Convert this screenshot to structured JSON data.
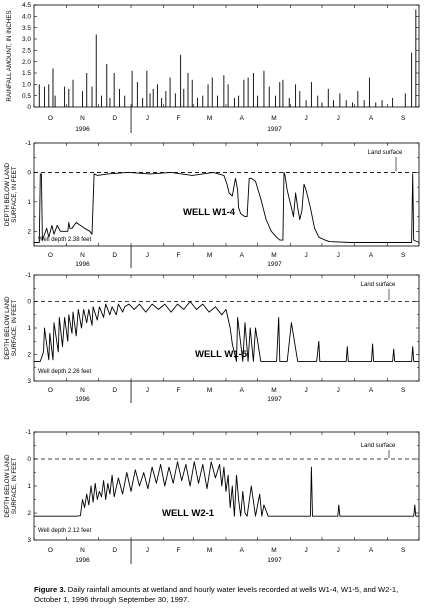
{
  "caption": {
    "label": "Figure 3.",
    "text": "Daily rainfall amounts at wetland and hourly water levels recorded at wells W1-4, W1-5, and W2-1, October 1, 1996 through September 30, 1997."
  },
  "months": [
    "O",
    "N",
    "D",
    "J",
    "F",
    "M",
    "A",
    "M",
    "J",
    "J",
    "A",
    "S"
  ],
  "years": [
    "1996",
    "1997"
  ],
  "chart_data": [
    {
      "type": "bar",
      "title": "",
      "ylabel": "RAINFALL AMOUNT, IN INCHES",
      "ylim": [
        0,
        4.5
      ],
      "yticks": [
        "0",
        "0.5",
        "1.0",
        "1.5",
        "2.0",
        "2.5",
        "3.0",
        "3.5",
        "4.0",
        "4.5"
      ],
      "x_unit": "days since Oct 1, 1996",
      "x": [
        5,
        10,
        14,
        18,
        20,
        29,
        33,
        37,
        46,
        50,
        55,
        59,
        64,
        69,
        72,
        76,
        81,
        86,
        93,
        98,
        103,
        107,
        110,
        113,
        117,
        121,
        125,
        129,
        134,
        139,
        142,
        146,
        150,
        155,
        160,
        165,
        169,
        174,
        180,
        184,
        190,
        194,
        199,
        203,
        208,
        212,
        218,
        223,
        229,
        233,
        236,
        242,
        248,
        252,
        258,
        263,
        269,
        273,
        279,
        284,
        290,
        296,
        302,
        307,
        313,
        318,
        324,
        330,
        340,
        352,
        358,
        362
      ],
      "values": [
        1.0,
        0.9,
        1.0,
        1.7,
        0.5,
        0.9,
        0.8,
        1.2,
        0.7,
        1.5,
        0.9,
        3.2,
        0.5,
        1.9,
        0.4,
        1.5,
        0.8,
        0.5,
        1.6,
        1.1,
        0.4,
        1.6,
        0.6,
        0.8,
        1.0,
        0.4,
        0.7,
        1.3,
        0.6,
        2.3,
        0.8,
        1.5,
        1.2,
        0.4,
        0.5,
        1.0,
        1.3,
        0.5,
        1.4,
        1.0,
        0.4,
        0.5,
        1.2,
        1.3,
        1.5,
        0.5,
        1.6,
        0.9,
        0.5,
        1.1,
        1.2,
        0.4,
        1.0,
        0.7,
        0.3,
        1.1,
        0.5,
        0.2,
        0.8,
        0.3,
        0.6,
        0.3,
        0.2,
        0.7,
        0.3,
        1.3,
        0.2,
        0.3,
        0.4,
        0.6,
        2.4,
        4.3
      ]
    },
    {
      "type": "line",
      "title": "WELL W1-4",
      "ylabel": "DEPTH BELOW LAND SURFACE, IN FEET",
      "ylim": [
        -1,
        2.5
      ],
      "yticks": [
        "-1",
        "0",
        "1",
        "2"
      ],
      "reference_line": "Land surface",
      "note": "Well depth 2.38 feet",
      "series": [
        {
          "x": [
            0,
            5,
            6,
            7,
            8,
            12,
            14,
            17,
            19,
            22,
            25,
            28,
            32,
            33,
            34,
            36,
            40,
            44,
            48,
            53,
            55,
            57,
            60,
            70,
            90,
            110,
            130,
            150,
            160,
            170,
            180,
            183,
            185,
            188,
            190,
            191,
            193,
            194,
            196,
            200,
            202,
            204,
            206,
            210,
            215,
            220,
            225,
            230,
            233,
            236,
            237,
            238,
            240,
            244,
            246,
            248,
            250,
            252,
            254,
            256,
            258,
            262,
            266,
            270,
            276,
            280,
            300,
            330,
            358,
            359,
            360,
            365
          ],
          "y": [
            2.38,
            2.38,
            0.05,
            0.05,
            2.3,
            1.9,
            2.2,
            1.8,
            2.1,
            1.8,
            2.0,
            2.0,
            2.0,
            1.7,
            1.9,
            1.9,
            1.7,
            1.8,
            1.9,
            2.0,
            2.1,
            0.05,
            0.1,
            0.05,
            0.0,
            0.05,
            0.0,
            0.1,
            0.05,
            0.0,
            0.1,
            0.4,
            0.7,
            0.8,
            0.4,
            0.2,
            0.6,
            1.2,
            1.4,
            1.5,
            1.5,
            0.2,
            0.2,
            0.3,
            0.9,
            1.6,
            2.0,
            2.2,
            2.3,
            2.3,
            0.0,
            0.1,
            0.6,
            1.2,
            1.5,
            0.7,
            1.2,
            1.6,
            1.3,
            0.4,
            0.6,
            1.2,
            1.9,
            2.2,
            2.3,
            2.35,
            2.38,
            2.38,
            2.38,
            0.05,
            2.3,
            2.38
          ]
        }
      ]
    },
    {
      "type": "line",
      "title": "WELL W1-5",
      "ylabel": "DEPTH BELOW LAND SURFACE, IN FEET",
      "ylim": [
        -1,
        3
      ],
      "yticks": [
        "-1",
        "0",
        "1",
        "2",
        "3"
      ],
      "reference_line": "Land surface",
      "note": "Well depth 2.26 feet",
      "series": [
        {
          "x": [
            0,
            5,
            6,
            9,
            10,
            14,
            15,
            18,
            19,
            23,
            24,
            27,
            29,
            32,
            33,
            36,
            37,
            40,
            42,
            45,
            47,
            50,
            52,
            55,
            56,
            60,
            62,
            66,
            68,
            72,
            74,
            78,
            80,
            84,
            86,
            90,
            95,
            100,
            106,
            112,
            118,
            124,
            130,
            136,
            142,
            148,
            154,
            160,
            166,
            172,
            178,
            182,
            186,
            188,
            192,
            193,
            198,
            200,
            203,
            205,
            208,
            210,
            215,
            220,
            230,
            232,
            233,
            240,
            244,
            250,
            256,
            262,
            268,
            270,
            271,
            272,
            290,
            296,
            297,
            298,
            320,
            321,
            322,
            340,
            341,
            342,
            358,
            359,
            360,
            365
          ],
          "y": [
            2.26,
            2.26,
            2.26,
            1.9,
            1.0,
            2.2,
            1.2,
            2.2,
            0.8,
            1.9,
            0.6,
            1.7,
            0.6,
            1.5,
            0.5,
            1.2,
            0.4,
            1.3,
            0.3,
            1.0,
            0.3,
            0.8,
            0.3,
            0.9,
            0.2,
            0.7,
            0.2,
            0.6,
            0.1,
            0.5,
            0.2,
            0.5,
            0.1,
            0.4,
            0.2,
            0.1,
            0.3,
            0.1,
            0.4,
            0.1,
            0.3,
            0.1,
            0.4,
            0.1,
            0.3,
            0.0,
            0.3,
            0.1,
            0.4,
            0.2,
            0.5,
            0.3,
            1.0,
            1.6,
            2.26,
            0.6,
            2.26,
            0.8,
            2.26,
            1.0,
            2.26,
            1.0,
            2.26,
            2.26,
            2.26,
            0.6,
            2.26,
            2.26,
            0.8,
            2.26,
            2.26,
            2.26,
            2.26,
            1.5,
            2.26,
            2.26,
            2.26,
            2.26,
            1.7,
            2.26,
            2.26,
            1.6,
            2.26,
            2.26,
            1.8,
            2.26,
            2.26,
            1.7,
            2.26,
            2.26
          ]
        }
      ]
    },
    {
      "type": "line",
      "title": "WELL W2-1",
      "ylabel": "DEPTH BELOW LAND SURFACE, IN FEET",
      "ylim": [
        -1,
        3
      ],
      "yticks": [
        "-1",
        "0",
        "1",
        "2",
        "3"
      ],
      "reference_line": "Land surface",
      "note": "Well depth 2.12 feet",
      "series": [
        {
          "x": [
            0,
            40,
            44,
            46,
            48,
            50,
            52,
            54,
            56,
            58,
            60,
            62,
            64,
            66,
            68,
            70,
            72,
            74,
            76,
            80,
            84,
            88,
            92,
            96,
            100,
            104,
            108,
            112,
            116,
            120,
            124,
            128,
            132,
            136,
            140,
            144,
            148,
            152,
            156,
            160,
            164,
            168,
            172,
            176,
            178,
            180,
            182,
            184,
            186,
            188,
            190,
            192,
            194,
            196,
            198,
            200,
            202,
            206,
            210,
            214,
            216,
            218,
            222,
            226,
            228,
            262,
            263,
            264,
            288,
            289,
            290,
            360,
            361,
            362,
            365
          ],
          "y": [
            2.12,
            2.12,
            2.1,
            1.5,
            1.8,
            1.3,
            1.7,
            1.0,
            1.6,
            0.9,
            1.5,
            1.2,
            1.4,
            0.8,
            1.5,
            0.9,
            1.3,
            0.6,
            1.4,
            0.7,
            1.3,
            0.5,
            1.2,
            0.4,
            1.0,
            0.5,
            1.1,
            0.3,
            0.9,
            0.2,
            1.0,
            0.3,
            0.9,
            0.1,
            0.8,
            0.2,
            1.0,
            0.1,
            0.9,
            0.2,
            1.1,
            0.1,
            0.7,
            0.2,
            1.0,
            0.3,
            1.2,
            0.6,
            1.8,
            1.0,
            2.12,
            0.6,
            1.5,
            2.12,
            1.2,
            2.0,
            2.12,
            1.0,
            2.12,
            1.3,
            2.12,
            1.7,
            2.12,
            2.12,
            2.12,
            2.12,
            0.3,
            2.12,
            2.12,
            1.7,
            2.12,
            2.12,
            1.7,
            2.12,
            2.12
          ]
        }
      ]
    }
  ]
}
